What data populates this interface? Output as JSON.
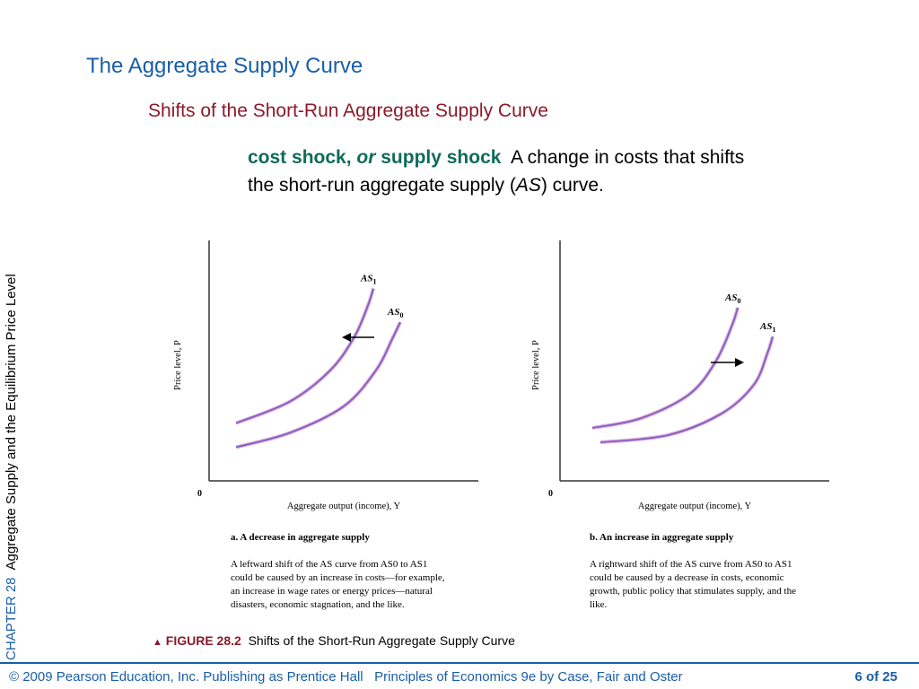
{
  "slide": {
    "title": "The Aggregate Supply Curve",
    "subtitle": "Shifts of the Short-Run Aggregate Supply Curve",
    "definition": {
      "term_a": "cost shock,",
      "term_or": "or",
      "term_b": "supply shock",
      "text_1": "A change in costs that shifts the short-run aggregate supply (",
      "text_as": "AS",
      "text_2": ") curve."
    },
    "side_label": {
      "chapter": "CHAPTER 28",
      "text": "Aggregate Supply and the Equilibrium Price Level"
    },
    "figure_caption": {
      "label": "FIGURE 28.2",
      "text": "Shifts of the Short-Run Aggregate Supply Curve"
    },
    "footer": {
      "copyright": "© 2009 Pearson Education, Inc. Publishing as Prentice Hall",
      "book": "Principles of Economics 9e by Case, Fair and Oster",
      "page": "6 of 25"
    }
  },
  "chart_data": [
    {
      "type": "line",
      "title": "a. A decrease in aggregate supply",
      "xlabel": "Aggregate output (income), Y",
      "ylabel": "Price level, P",
      "origin_label": "0",
      "xlim": [
        0,
        10
      ],
      "ylim": [
        0,
        10
      ],
      "grid": false,
      "shift_direction": "left",
      "caption": "A leftward shift of the AS curve from AS0 to AS1 could be caused by an increase in costs—for example, an increase in wage rates or energy prices—natural disasters, economic stagnation, and the like.",
      "series": [
        {
          "name": "AS1",
          "points": [
            [
              1.0,
              2.4
            ],
            [
              3.0,
              3.3
            ],
            [
              4.5,
              4.6
            ],
            [
              5.4,
              6.0
            ],
            [
              5.9,
              7.3
            ],
            [
              6.1,
              8.0
            ]
          ]
        },
        {
          "name": "AS0",
          "points": [
            [
              1.0,
              1.4
            ],
            [
              3.0,
              2.0
            ],
            [
              5.0,
              3.1
            ],
            [
              6.2,
              4.6
            ],
            [
              6.8,
              5.9
            ],
            [
              7.1,
              6.6
            ]
          ]
        }
      ],
      "colors": {
        "curve": "#7060c0",
        "curve_glow": "#e0a4d8",
        "axis": "#333333"
      }
    },
    {
      "type": "line",
      "title": "b. An increase in aggregate supply",
      "xlabel": "Aggregate output (income), Y",
      "ylabel": "Price level, P",
      "origin_label": "0",
      "xlim": [
        0,
        10
      ],
      "ylim": [
        0,
        10
      ],
      "grid": false,
      "shift_direction": "right",
      "caption": "A rightward shift of the AS curve from AS0 to AS1 could be caused by a decrease in costs, economic growth, public policy that stimulates supply, and the like.",
      "series": [
        {
          "name": "AS0",
          "points": [
            [
              1.2,
              2.2
            ],
            [
              3.0,
              2.6
            ],
            [
              4.8,
              3.6
            ],
            [
              5.8,
              5.0
            ],
            [
              6.4,
              6.5
            ],
            [
              6.6,
              7.2
            ]
          ]
        },
        {
          "name": "AS1",
          "points": [
            [
              1.5,
              1.6
            ],
            [
              4.0,
              1.9
            ],
            [
              6.0,
              2.8
            ],
            [
              7.2,
              4.0
            ],
            [
              7.7,
              5.3
            ],
            [
              7.9,
              6.0
            ]
          ]
        }
      ],
      "colors": {
        "curve": "#7060c0",
        "curve_glow": "#e0a4d8",
        "axis": "#333333"
      }
    }
  ]
}
